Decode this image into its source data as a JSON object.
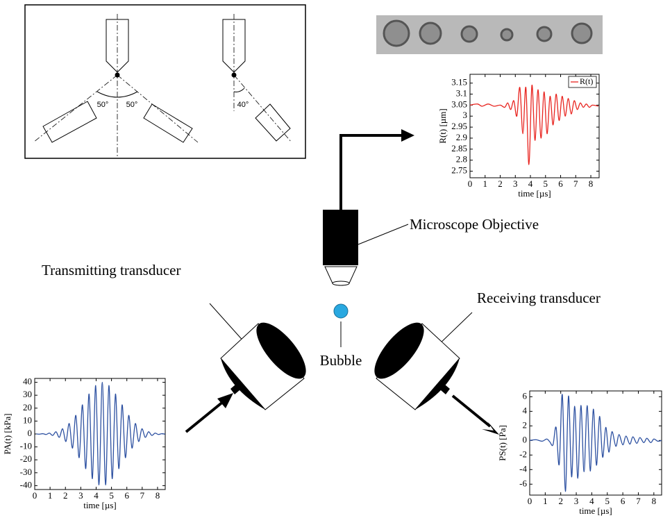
{
  "labels": {
    "objective": "Microscope Objective",
    "transmitter": "Transmitting transducer",
    "receiver": "Receiving transducer",
    "bubble": "Bubble"
  },
  "angles": [
    "50°",
    "50°",
    "40°"
  ],
  "chart_data": [
    {
      "type": "line",
      "xlabel": "time [µs]",
      "ylabel": "R(t) [µm]",
      "x": [
        0,
        0.5,
        0.8,
        1.2,
        1.6,
        2.0,
        2.3,
        2.5,
        2.7,
        2.9,
        3.1,
        3.3,
        3.5,
        3.7,
        3.9,
        4.1,
        4.3,
        4.5,
        4.7,
        4.9,
        5.1,
        5.3,
        5.5,
        5.7,
        5.9,
        6.1,
        6.3,
        6.5,
        6.7,
        6.9,
        7.1,
        7.3,
        7.5,
        7.7,
        7.9,
        8.1,
        8.5
      ],
      "series": [
        {
          "name": "R(t)",
          "color": "#e8231e",
          "values": [
            3.05,
            3.055,
            3.045,
            3.055,
            3.045,
            3.05,
            3.04,
            3.06,
            3.03,
            3.07,
            3.0,
            3.13,
            2.92,
            3.13,
            2.78,
            3.14,
            2.89,
            3.12,
            2.9,
            3.11,
            2.92,
            3.09,
            2.96,
            3.1,
            2.98,
            3.09,
            3.0,
            3.08,
            3.01,
            3.07,
            3.03,
            3.06,
            3.04,
            3.055,
            3.04,
            3.05,
            3.045
          ]
        }
      ],
      "xlim": [
        0,
        8.55
      ],
      "ylim": [
        2.72,
        3.19
      ],
      "xticks": [
        0,
        1,
        2,
        3,
        4,
        5,
        6,
        7,
        8
      ],
      "yticks": [
        2.75,
        2.8,
        2.85,
        2.9,
        2.95,
        3,
        3.05,
        3.1,
        3.15
      ],
      "legend": "upper right"
    },
    {
      "type": "line",
      "xlabel": "time [µs]",
      "ylabel": "PA(t) [kPa]",
      "x": [
        0.1,
        0.315,
        0.53,
        0.745,
        0.96,
        1.175,
        1.39,
        1.605,
        1.82,
        2.035,
        2.25,
        2.465,
        2.68,
        2.895,
        3.11,
        3.325,
        3.54,
        3.755,
        3.97,
        4.185,
        4.4,
        4.615,
        4.83,
        5.045,
        5.26,
        5.475,
        5.69,
        5.905,
        6.12,
        6.335,
        6.55,
        6.765,
        6.98,
        7.195,
        7.41,
        7.625,
        7.84,
        8.055,
        8.27,
        8.485
      ],
      "series": [
        {
          "color": "#2b4fa0",
          "values": [
            0.07,
            -0.12,
            0.22,
            -0.39,
            0.67,
            -1.1,
            1.7,
            -2.6,
            4.0,
            -5.8,
            8.1,
            -10.9,
            14.4,
            -18.3,
            22.5,
            -26.8,
            30.9,
            -34.6,
            37.5,
            -39.4,
            40,
            -39.4,
            37.5,
            -34.6,
            30.9,
            -26.8,
            22.5,
            -18.3,
            14.4,
            -10.9,
            8.1,
            -5.8,
            4.0,
            -2.6,
            1.7,
            -1.1,
            0.67,
            -0.39,
            0.22,
            -0.12
          ]
        }
      ],
      "xlim": [
        0,
        8.5
      ],
      "ylim": [
        -43,
        43
      ],
      "xticks": [
        0,
        1,
        2,
        3,
        4,
        5,
        6,
        7,
        8
      ],
      "yticks": [
        -40,
        -30,
        -20,
        -10,
        0,
        10,
        20,
        30,
        40
      ]
    },
    {
      "type": "line",
      "xlabel": "time [µs]",
      "ylabel": "PS(t) [Pa]",
      "x": [
        0,
        0.4,
        0.8,
        1.1,
        1.3,
        1.5,
        1.7,
        1.9,
        2.1,
        2.3,
        2.5,
        2.7,
        2.9,
        3.1,
        3.3,
        3.5,
        3.7,
        3.9,
        4.1,
        4.3,
        4.5,
        4.7,
        4.9,
        5.1,
        5.3,
        5.55,
        5.75,
        6.0,
        6.2,
        6.45,
        6.65,
        6.9,
        7.1,
        7.35,
        7.55,
        7.8,
        8.0,
        8.25,
        8.5
      ],
      "series": [
        {
          "color": "#2b4fa0",
          "values": [
            0,
            0.1,
            -0.1,
            0.2,
            -0.2,
            -0.6,
            1.8,
            -3.3,
            6.3,
            -7.0,
            6.1,
            -5.0,
            4.7,
            -5.2,
            4.8,
            -4.3,
            4.8,
            -4.2,
            4.3,
            -3.4,
            3.3,
            -2.3,
            1.8,
            -1.6,
            1.2,
            -0.8,
            0.8,
            -0.6,
            0.6,
            -0.5,
            0.5,
            -0.4,
            0.4,
            -0.3,
            0.3,
            -0.3,
            0.2,
            -0.1,
            0
          ]
        }
      ],
      "xlim": [
        0,
        8.5
      ],
      "ylim": [
        -7.5,
        6.8
      ],
      "xticks": [
        0,
        1,
        2,
        3,
        4,
        5,
        6,
        7,
        8
      ],
      "yticks": [
        -6,
        -4,
        -2,
        0,
        2,
        4,
        6
      ]
    }
  ]
}
